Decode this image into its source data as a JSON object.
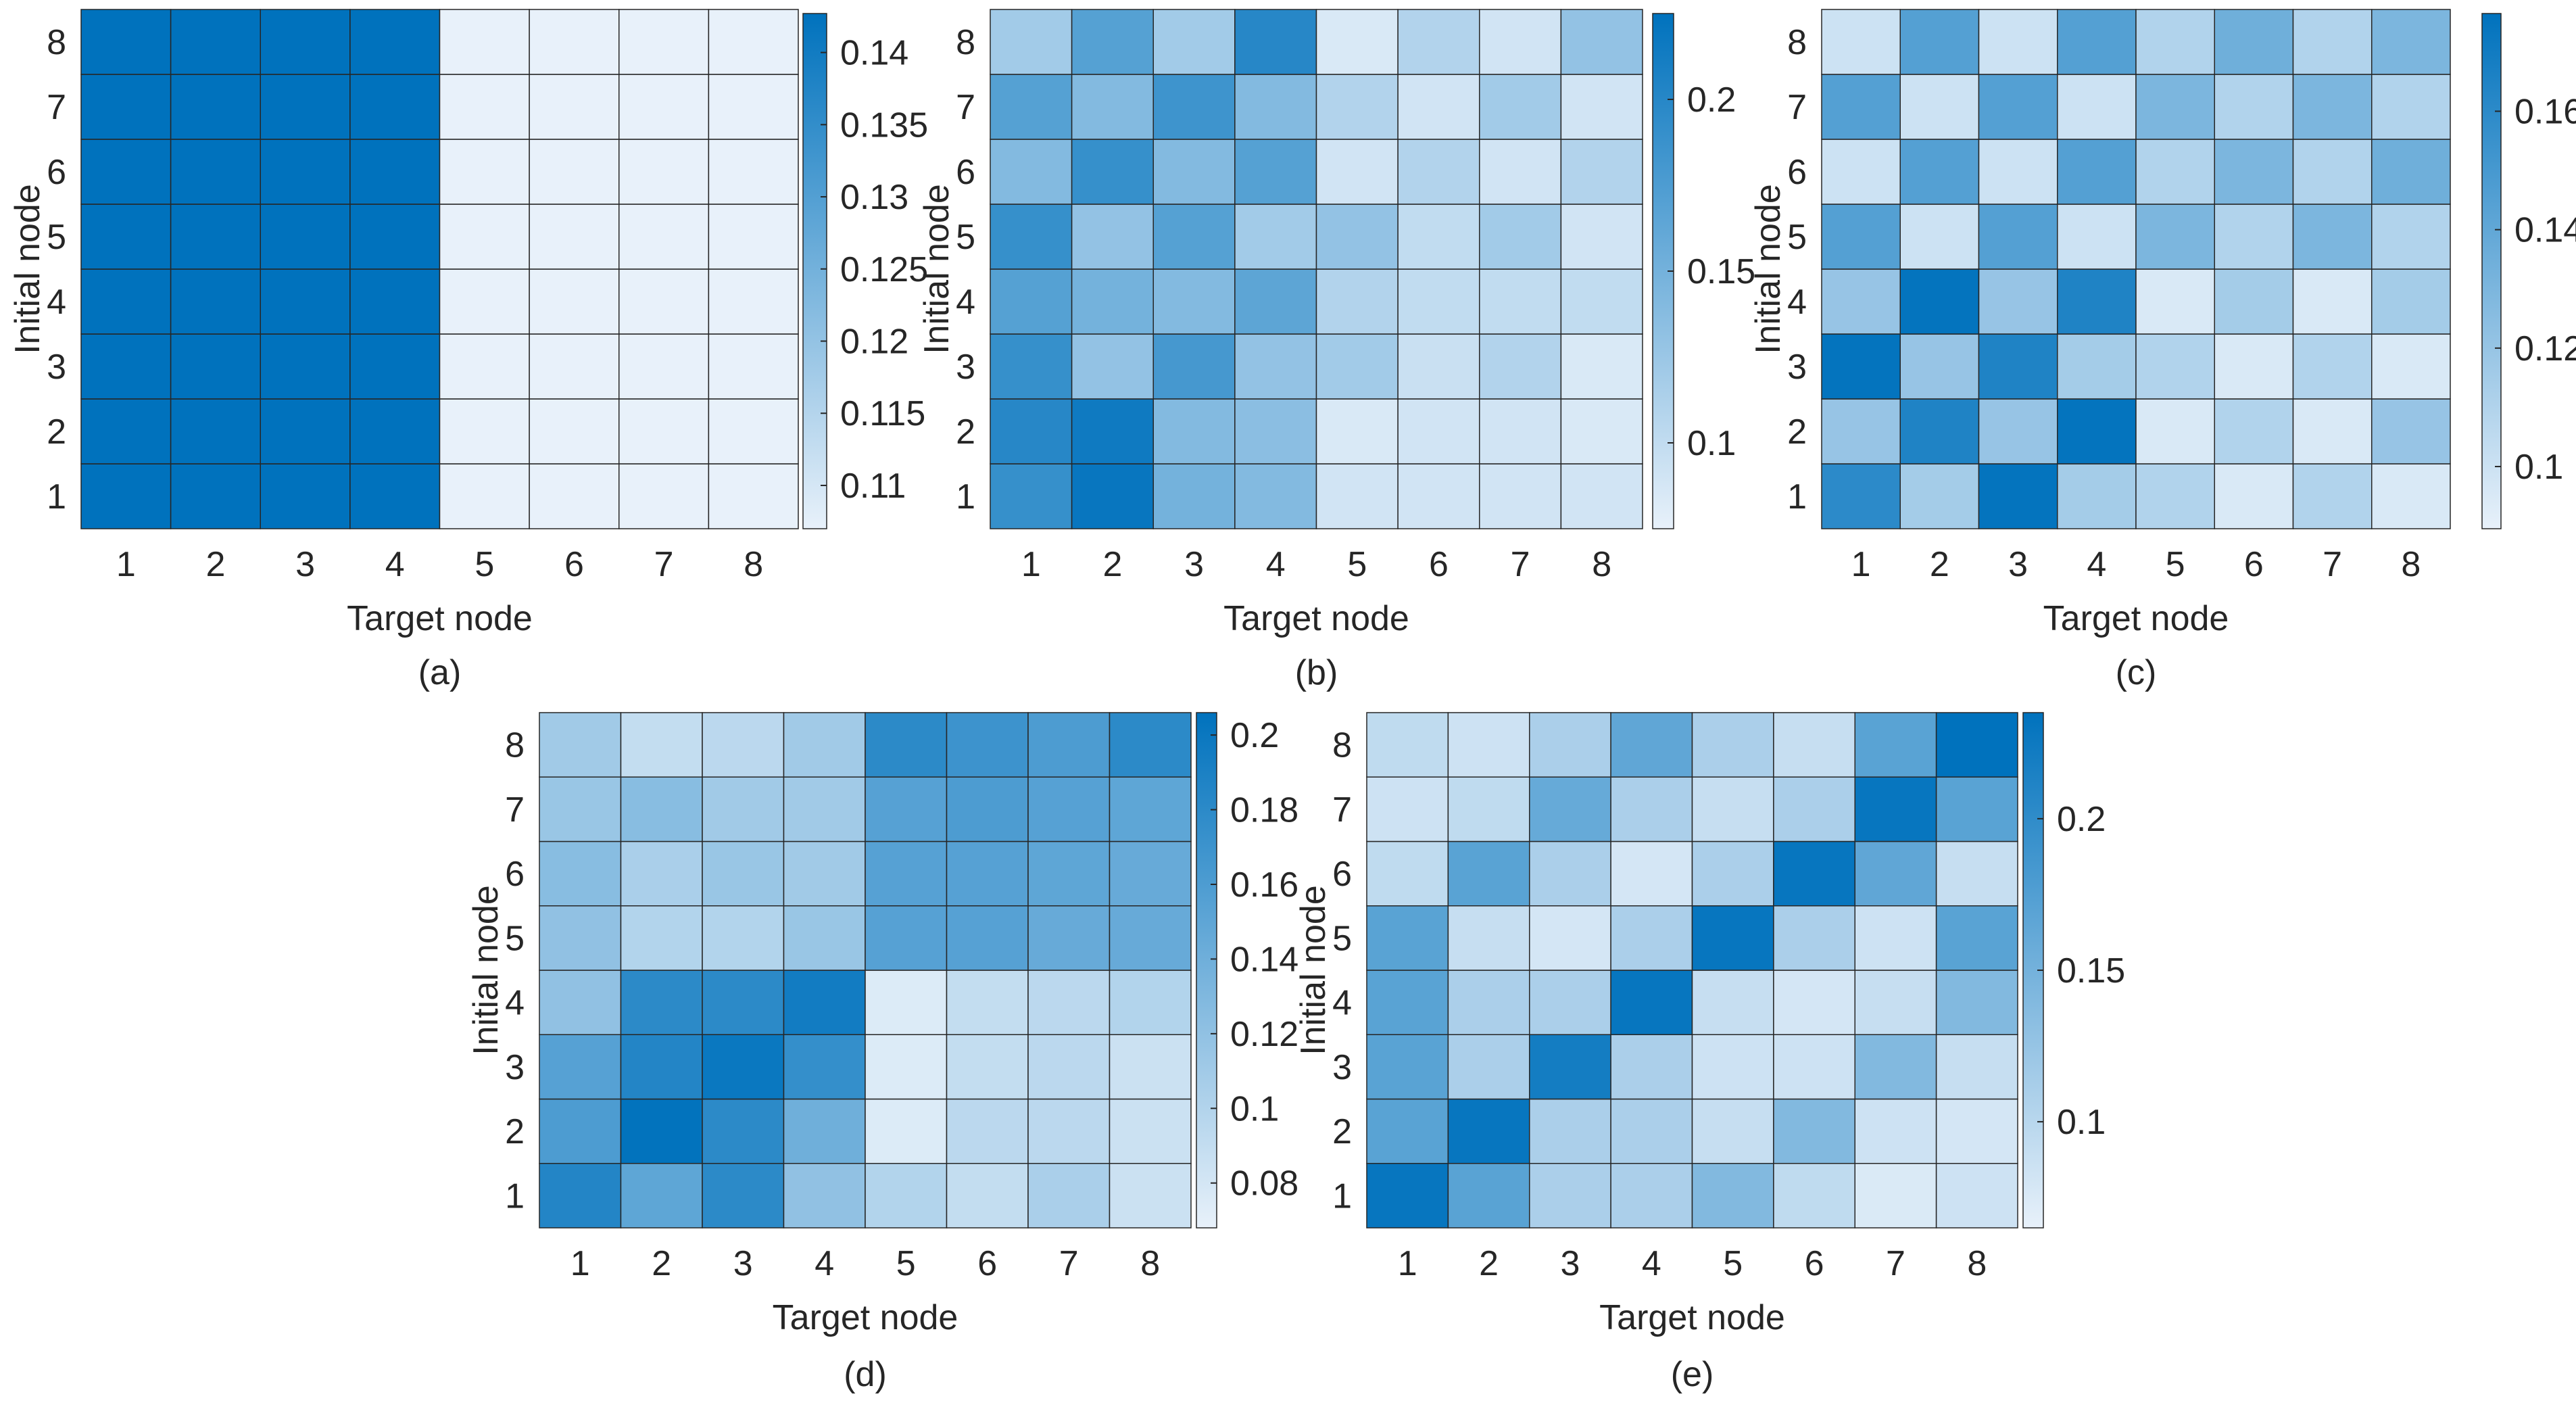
{
  "colors": {
    "low": "#e8f1fa",
    "high": "#0072bd",
    "grid": "#262626",
    "text": "#262626"
  },
  "chart_data": [
    {
      "type": "heatmap",
      "panel_label": "(a)",
      "xlabel": "Target node",
      "ylabel": "Initial node",
      "x_categories": [
        "1",
        "2",
        "3",
        "4",
        "5",
        "6",
        "7",
        "8"
      ],
      "y_categories": [
        "1",
        "2",
        "3",
        "4",
        "5",
        "6",
        "7",
        "8"
      ],
      "clim": [
        0.107,
        0.1427
      ],
      "colorbar_ticks": [
        0.11,
        0.115,
        0.12,
        0.125,
        0.13,
        0.135,
        0.14
      ],
      "colorbar_tick_labels": [
        "0.11",
        "0.115",
        "0.12",
        "0.125",
        "0.13",
        "0.135",
        "0.14"
      ],
      "rows_bottom_to_top": [
        [
          0.1427,
          0.1427,
          0.1427,
          0.1427,
          0.107,
          0.107,
          0.107,
          0.107
        ],
        [
          0.1427,
          0.1427,
          0.1427,
          0.1427,
          0.107,
          0.107,
          0.107,
          0.107
        ],
        [
          0.1427,
          0.1427,
          0.1427,
          0.1427,
          0.107,
          0.107,
          0.107,
          0.107
        ],
        [
          0.1427,
          0.1427,
          0.1427,
          0.1427,
          0.107,
          0.107,
          0.107,
          0.107
        ],
        [
          0.1427,
          0.1427,
          0.1427,
          0.1427,
          0.107,
          0.107,
          0.107,
          0.107
        ],
        [
          0.1427,
          0.1427,
          0.1427,
          0.1427,
          0.107,
          0.107,
          0.107,
          0.107
        ],
        [
          0.1427,
          0.1427,
          0.1427,
          0.1427,
          0.107,
          0.107,
          0.107,
          0.107
        ],
        [
          0.1427,
          0.1427,
          0.1427,
          0.1427,
          0.107,
          0.107,
          0.107,
          0.107
        ]
      ]
    },
    {
      "type": "heatmap",
      "panel_label": "(b)",
      "xlabel": "Target node",
      "ylabel": "Initial node",
      "x_categories": [
        "1",
        "2",
        "3",
        "4",
        "5",
        "6",
        "7",
        "8"
      ],
      "y_categories": [
        "1",
        "2",
        "3",
        "4",
        "5",
        "6",
        "7",
        "8"
      ],
      "clim": [
        0.075,
        0.225
      ],
      "colorbar_ticks": [
        0.1,
        0.15,
        0.2
      ],
      "colorbar_tick_labels": [
        "0.1",
        "0.15",
        "0.2"
      ],
      "rows_bottom_to_top": [
        [
          0.19,
          0.22,
          0.15,
          0.14,
          0.09,
          0.09,
          0.09,
          0.09
        ],
        [
          0.2,
          0.215,
          0.14,
          0.135,
          0.085,
          0.09,
          0.09,
          0.085
        ],
        [
          0.19,
          0.13,
          0.18,
          0.13,
          0.12,
          0.095,
          0.11,
          0.085
        ],
        [
          0.17,
          0.15,
          0.14,
          0.165,
          0.11,
          0.1,
          0.1,
          0.1
        ],
        [
          0.19,
          0.13,
          0.17,
          0.12,
          0.13,
          0.1,
          0.12,
          0.09
        ],
        [
          0.14,
          0.19,
          0.14,
          0.17,
          0.09,
          0.11,
          0.09,
          0.11
        ],
        [
          0.17,
          0.14,
          0.185,
          0.14,
          0.11,
          0.09,
          0.12,
          0.09
        ],
        [
          0.12,
          0.17,
          0.12,
          0.2,
          0.085,
          0.11,
          0.09,
          0.13
        ]
      ]
    },
    {
      "type": "heatmap",
      "panel_label": "(c)",
      "xlabel": "Target node",
      "ylabel": "Initial node",
      "x_categories": [
        "1",
        "2",
        "3",
        "4",
        "5",
        "6",
        "7",
        "8"
      ],
      "y_categories": [
        "1",
        "2",
        "3",
        "4",
        "5",
        "6",
        "7",
        "8"
      ],
      "clim": [
        0.0895,
        0.1765
      ],
      "colorbar_ticks": [
        0.1,
        0.12,
        0.14,
        0.16
      ],
      "colorbar_tick_labels": [
        "0.1",
        "0.12",
        "0.14",
        "0.16"
      ],
      "rows_bottom_to_top": [
        [
          0.16,
          0.115,
          0.175,
          0.115,
          0.11,
          0.095,
          0.11,
          0.095
        ],
        [
          0.12,
          0.165,
          0.12,
          0.175,
          0.095,
          0.11,
          0.095,
          0.12
        ],
        [
          0.175,
          0.12,
          0.165,
          0.115,
          0.11,
          0.095,
          0.11,
          0.095
        ],
        [
          0.12,
          0.175,
          0.12,
          0.165,
          0.095,
          0.115,
          0.095,
          0.115
        ],
        [
          0.145,
          0.1,
          0.145,
          0.1,
          0.13,
          0.11,
          0.13,
          0.11
        ],
        [
          0.1,
          0.145,
          0.1,
          0.145,
          0.11,
          0.13,
          0.11,
          0.135
        ],
        [
          0.145,
          0.1,
          0.145,
          0.1,
          0.13,
          0.11,
          0.13,
          0.11
        ],
        [
          0.1,
          0.145,
          0.1,
          0.145,
          0.11,
          0.135,
          0.11,
          0.13
        ]
      ]
    },
    {
      "type": "heatmap",
      "panel_label": "(d)",
      "xlabel": "Target node",
      "ylabel": "Initial node",
      "x_categories": [
        "1",
        "2",
        "3",
        "4",
        "5",
        "6",
        "7",
        "8"
      ],
      "y_categories": [
        "1",
        "2",
        "3",
        "4",
        "5",
        "6",
        "7",
        "8"
      ],
      "clim": [
        0.068,
        0.206
      ],
      "colorbar_ticks": [
        0.08,
        0.1,
        0.12,
        0.14,
        0.16,
        0.18,
        0.2
      ],
      "colorbar_tick_labels": [
        "0.08",
        "0.1",
        "0.12",
        "0.14",
        "0.16",
        "0.18",
        "0.2"
      ],
      "rows_bottom_to_top": [
        [
          0.185,
          0.15,
          0.18,
          0.12,
          0.1,
          0.09,
          0.105,
          0.085
        ],
        [
          0.16,
          0.205,
          0.18,
          0.14,
          0.075,
          0.095,
          0.095,
          0.085
        ],
        [
          0.155,
          0.185,
          0.2,
          0.175,
          0.075,
          0.09,
          0.095,
          0.085
        ],
        [
          0.12,
          0.18,
          0.18,
          0.195,
          0.075,
          0.09,
          0.095,
          0.1
        ],
        [
          0.12,
          0.1,
          0.1,
          0.115,
          0.155,
          0.155,
          0.145,
          0.145
        ],
        [
          0.125,
          0.105,
          0.115,
          0.11,
          0.155,
          0.155,
          0.15,
          0.145
        ],
        [
          0.115,
          0.125,
          0.11,
          0.11,
          0.155,
          0.16,
          0.155,
          0.15
        ],
        [
          0.11,
          0.09,
          0.095,
          0.11,
          0.18,
          0.17,
          0.16,
          0.18
        ]
      ]
    },
    {
      "type": "heatmap",
      "panel_label": "(e)",
      "xlabel": "Target node",
      "ylabel": "Initial node",
      "x_categories": [
        "1",
        "2",
        "3",
        "4",
        "5",
        "6",
        "7",
        "8"
      ],
      "y_categories": [
        "1",
        "2",
        "3",
        "4",
        "5",
        "6",
        "7",
        "8"
      ],
      "clim": [
        0.065,
        0.235
      ],
      "colorbar_ticks": [
        0.1,
        0.15,
        0.2
      ],
      "colorbar_tick_labels": [
        "0.1",
        "0.15",
        "0.2"
      ],
      "rows_bottom_to_top": [
        [
          0.23,
          0.17,
          0.11,
          0.11,
          0.14,
          0.095,
          0.075,
          0.085
        ],
        [
          0.17,
          0.23,
          0.11,
          0.11,
          0.09,
          0.14,
          0.085,
          0.08
        ],
        [
          0.17,
          0.11,
          0.22,
          0.11,
          0.085,
          0.085,
          0.14,
          0.09
        ],
        [
          0.17,
          0.11,
          0.11,
          0.23,
          0.09,
          0.08,
          0.09,
          0.14
        ],
        [
          0.17,
          0.09,
          0.08,
          0.11,
          0.23,
          0.11,
          0.085,
          0.17
        ],
        [
          0.095,
          0.17,
          0.11,
          0.08,
          0.11,
          0.23,
          0.165,
          0.09
        ],
        [
          0.085,
          0.095,
          0.16,
          0.11,
          0.09,
          0.11,
          0.23,
          0.17
        ],
        [
          0.095,
          0.085,
          0.11,
          0.165,
          0.11,
          0.09,
          0.17,
          0.235
        ]
      ]
    }
  ]
}
